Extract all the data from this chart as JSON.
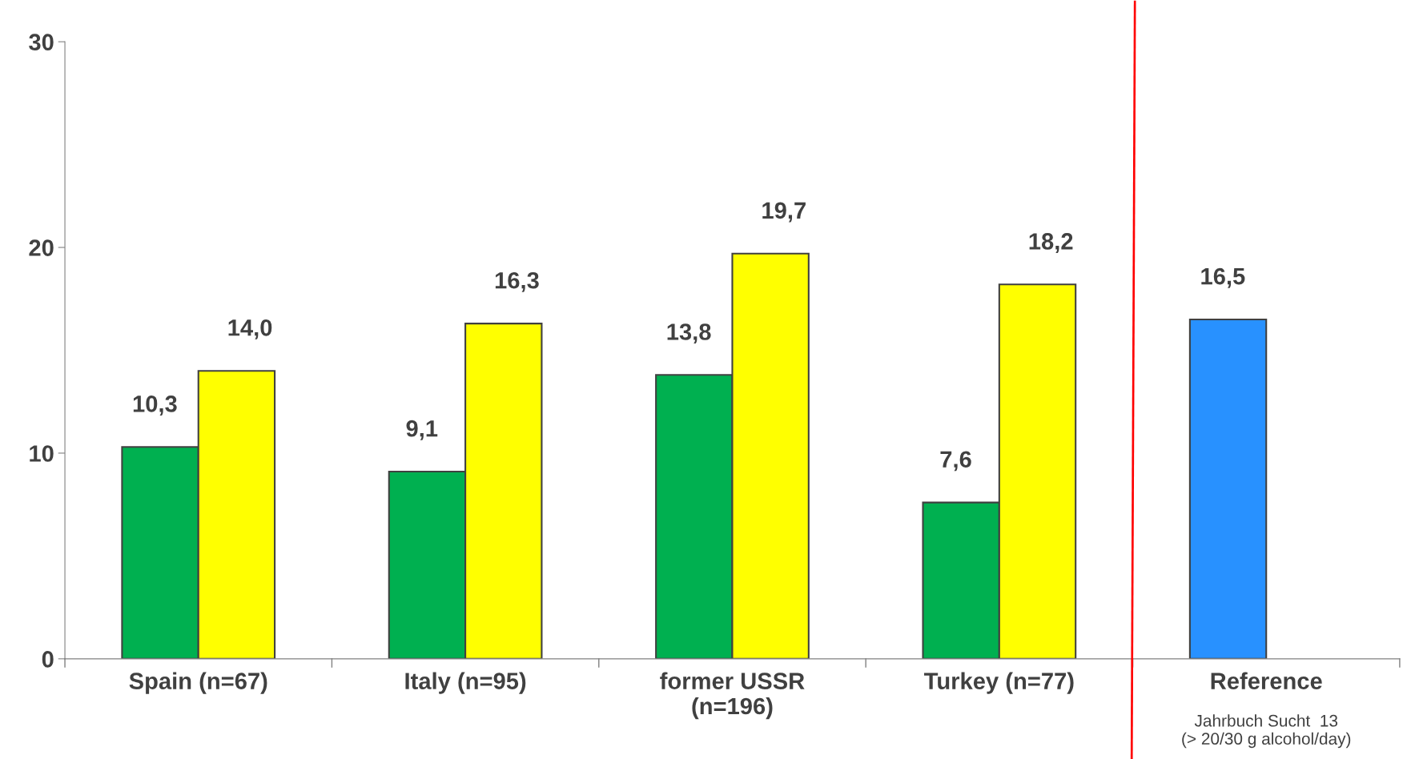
{
  "chart_data": {
    "type": "bar",
    "categories": [
      "Spain (n=67)",
      "Italy (n=95)",
      "former USSR\n(n=196)",
      "Turkey (n=77)",
      "Reference"
    ],
    "series": [
      {
        "color": "#00b050",
        "colors": [
          "#00b050",
          "#00b050",
          "#00b050",
          "#00b050",
          "#2891ff"
        ],
        "values": [
          10.3,
          9.1,
          13.8,
          7.6,
          16.5
        ],
        "value_labels": [
          "10,3",
          "9,1",
          "13,8",
          "7,6",
          "16,5"
        ]
      },
      {
        "color": "#ffff00",
        "values": [
          14.0,
          16.3,
          19.7,
          18.2,
          null
        ],
        "value_labels": [
          "14,0",
          "16,3",
          "19,7",
          "18,2",
          null
        ]
      }
    ],
    "ylim": [
      0,
      30
    ],
    "yticks": [
      0,
      10,
      20,
      30
    ],
    "grid": false,
    "legend": false,
    "annotations": [
      "Jahrbuch Sucht  13\n(> 20/30 g alcohol/day)"
    ]
  }
}
